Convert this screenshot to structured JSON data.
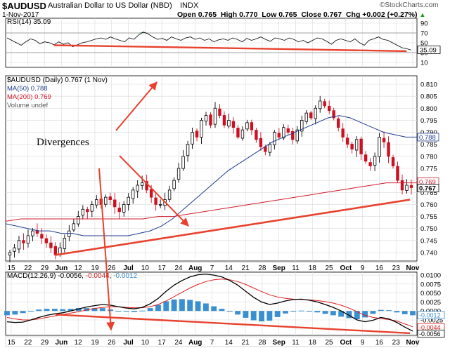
{
  "header": {
    "symbol": "$AUDUSD",
    "name": "Australian Dollar to US Dollar (NBD)",
    "exchange": "INDX",
    "date": "1-Nov-2017",
    "open_label": "Open",
    "open": "0.765",
    "high_label": "High",
    "high": "0.770",
    "low_label": "Low",
    "low": "0.765",
    "close_label": "Close",
    "close": "0.767",
    "chg_label": "Chg",
    "chg": "+0.002 (+0.27%)",
    "chg_arrow": "▲",
    "source": "©StockCharts.com"
  },
  "annotation": {
    "text": "Divergences"
  },
  "colors": {
    "up_candle": "#000000",
    "down_candle": "#cc1122",
    "ma50": "#1f3c8f",
    "ma200": "#d11a2a",
    "trend_lines": "#e8412e",
    "macd_line": "#000000",
    "signal_line": "#e02020",
    "histogram": "#3a8fd1",
    "rsi_line": "#000000",
    "rsi_overbought_fill": "#2e7d32",
    "grid": "#d9d9d9"
  },
  "chart_data": [
    {
      "type": "line",
      "name": "rsi",
      "legend": "RSI(14) 35.09",
      "current_value": "35.09",
      "yticks": [
        "90",
        "70",
        "50",
        "30",
        "10"
      ],
      "ylim": [
        0,
        100
      ],
      "levels": [
        70,
        30
      ],
      "values": [
        60,
        55,
        50,
        45,
        52,
        58,
        55,
        48,
        52,
        50,
        46,
        52,
        47,
        50,
        42,
        46,
        50,
        52,
        55,
        58,
        60,
        57,
        62,
        58,
        55,
        52,
        60,
        57,
        66,
        72,
        68,
        62,
        57,
        59,
        55,
        62,
        58,
        55,
        60,
        62,
        57,
        60,
        55,
        58,
        52,
        56,
        58,
        55,
        60,
        57,
        52,
        59,
        55,
        58,
        62,
        57,
        53,
        60,
        58,
        55,
        60,
        57,
        52,
        55,
        50,
        55,
        60,
        58,
        53,
        47,
        55,
        58,
        55,
        52,
        58,
        50,
        45,
        55,
        58,
        62,
        57,
        55,
        50,
        45,
        40,
        38,
        35.09
      ],
      "divergence_line": {
        "from": {
          "index": 10,
          "value": 45
        },
        "to": {
          "index": 85,
          "value": 33
        }
      }
    },
    {
      "type": "candlestick",
      "name": "price",
      "legend": "$AUDUSD (Daily) 0.767 (1 Nov)",
      "series": [
        {
          "name": "MA(50) 0.788"
        },
        {
          "name": "MA(200) 0.769"
        },
        {
          "name": "Volume undef"
        }
      ],
      "price_labels": {
        "ma50": "0.788",
        "ma200": "0.769",
        "close": "0.767"
      },
      "yticks": [
        "0.810",
        "0.805",
        "0.800",
        "0.795",
        "0.790",
        "0.785",
        "0.780",
        "0.775",
        "0.770",
        "0.765",
        "0.760",
        "0.755",
        "0.750",
        "0.745",
        "0.740"
      ],
      "ylim": [
        0.7365,
        0.8135
      ],
      "xticks": [
        "15",
        "22",
        "29",
        "Jun",
        "12",
        "19",
        "26",
        "Jul",
        "10",
        "17",
        "24",
        "Aug",
        "7",
        "14",
        "21",
        "28",
        "Sep",
        "11",
        "18",
        "25",
        "Oct",
        "9",
        "16",
        "23",
        "Nov"
      ],
      "close": [
        0.74,
        0.742,
        0.745,
        0.744,
        0.747,
        0.749,
        0.748,
        0.746,
        0.744,
        0.742,
        0.739,
        0.742,
        0.746,
        0.749,
        0.752,
        0.755,
        0.758,
        0.757,
        0.76,
        0.762,
        0.76,
        0.763,
        0.762,
        0.759,
        0.757,
        0.76,
        0.763,
        0.766,
        0.768,
        0.769,
        0.766,
        0.763,
        0.76,
        0.76,
        0.762,
        0.766,
        0.77,
        0.775,
        0.78,
        0.785,
        0.79,
        0.788,
        0.795,
        0.797,
        0.793,
        0.8,
        0.797,
        0.793,
        0.795,
        0.792,
        0.788,
        0.791,
        0.794,
        0.791,
        0.787,
        0.784,
        0.782,
        0.785,
        0.79,
        0.788,
        0.792,
        0.79,
        0.787,
        0.791,
        0.795,
        0.798,
        0.796,
        0.8,
        0.803,
        0.801,
        0.799,
        0.796,
        0.792,
        0.788,
        0.785,
        0.783,
        0.787,
        0.781,
        0.778,
        0.776,
        0.78,
        0.788,
        0.786,
        0.78,
        0.776,
        0.77,
        0.766,
        0.768,
        0.767
      ],
      "ma50": [
        0.752,
        0.751,
        0.75,
        0.749,
        0.749,
        0.748,
        0.748,
        0.747,
        0.747,
        0.747,
        0.747,
        0.747,
        0.748,
        0.749,
        0.751,
        0.754,
        0.758,
        0.762,
        0.766,
        0.77,
        0.774,
        0.777,
        0.78,
        0.783,
        0.786,
        0.788,
        0.79,
        0.792,
        0.794,
        0.796,
        0.797,
        0.796,
        0.794,
        0.792,
        0.79,
        0.789,
        0.788,
        0.788
      ],
      "ma200": [
        0.753,
        0.754,
        0.754,
        0.754,
        0.754,
        0.754,
        0.754,
        0.754,
        0.754,
        0.754,
        0.755,
        0.755,
        0.756,
        0.757,
        0.758,
        0.759,
        0.76,
        0.761,
        0.762,
        0.763,
        0.764,
        0.765,
        0.766,
        0.767,
        0.768,
        0.769,
        0.769,
        0.769
      ],
      "divergence_lines": [
        {
          "from": {
            "date": "29 May",
            "value": 0.739
          },
          "to": {
            "date": "1 Nov",
            "value": 0.762
          }
        }
      ]
    },
    {
      "type": "line",
      "name": "macd",
      "legend": "MACD(12,26,9) -0.0056, -0.0044, -0.0012",
      "legend_parts": {
        "label": "MACD(12,26,9)",
        "macd": "-0.0056",
        "signal": "-0.0044",
        "histogram": "-0.0012"
      },
      "yticks": [
        "0.0100",
        "0.0075",
        "0.0050",
        "0.0025",
        "0.0000",
        "-0.0025"
      ],
      "price_labels": [
        "-0.0012",
        "-0.0044",
        "-0.0056"
      ],
      "ylim": [
        -0.0068,
        0.0108
      ],
      "macd": [
        -0.003,
        -0.0032,
        -0.0031,
        -0.0025,
        -0.0018,
        -0.0012,
        -0.0008,
        -0.0005,
        0.0,
        0.0006,
        0.0011,
        0.0015,
        0.0018,
        0.0016,
        0.0012,
        0.0008,
        0.0006,
        0.001,
        0.002,
        0.0035,
        0.0055,
        0.0072,
        0.0085,
        0.0095,
        0.0101,
        0.0103,
        0.01,
        0.0095,
        0.0085,
        0.0072,
        0.0055,
        0.0038,
        0.0025,
        0.0018,
        0.0022,
        0.0028,
        0.0032,
        0.0033,
        0.003,
        0.0025,
        0.0018,
        0.001,
        0.0,
        -0.0012,
        -0.0025,
        -0.003,
        -0.0026,
        -0.0018,
        -0.0022,
        -0.0032,
        -0.0045,
        -0.0056
      ],
      "signal": [
        -0.0018,
        -0.0022,
        -0.0025,
        -0.0025,
        -0.0022,
        -0.0018,
        -0.0014,
        -0.001,
        -0.0006,
        -0.0002,
        0.0003,
        0.0007,
        0.001,
        0.0012,
        0.0012,
        0.001,
        0.0009,
        0.0009,
        0.0012,
        0.0018,
        0.0028,
        0.004,
        0.0052,
        0.0064,
        0.0074,
        0.0082,
        0.0087,
        0.0089,
        0.0087,
        0.0082,
        0.0074,
        0.0064,
        0.0054,
        0.0045,
        0.0039,
        0.0035,
        0.0033,
        0.0032,
        0.0031,
        0.0029,
        0.0026,
        0.0022,
        0.0016,
        0.0008,
        -0.0002,
        -0.0012,
        -0.0018,
        -0.0021,
        -0.0024,
        -0.0028,
        -0.0036,
        -0.0044
      ],
      "divergence_line": {
        "from": {
          "date": "29 May",
          "value": -0.001
        },
        "to": {
          "date": "1 Nov",
          "value": -0.0062
        }
      }
    }
  ]
}
